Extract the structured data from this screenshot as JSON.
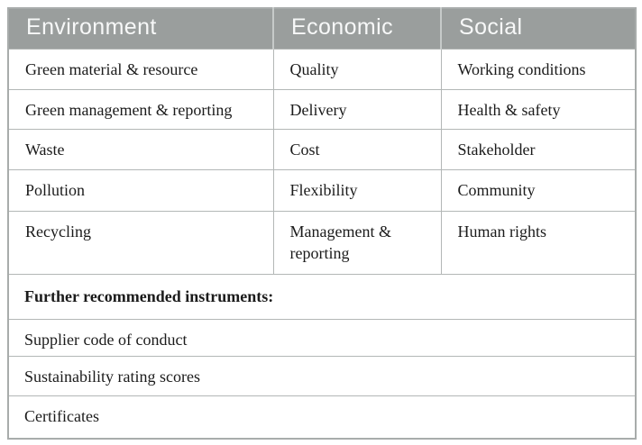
{
  "figure": {
    "columns": [
      "Environment",
      "Economic",
      "Social"
    ],
    "rows": [
      [
        "Green material & resource",
        "Quality",
        "Working conditions"
      ],
      [
        "Green management & reporting",
        "Delivery",
        "Health & safety"
      ],
      [
        "Waste",
        "Cost",
        "Stakeholder"
      ],
      [
        "Pollution",
        "Flexibility",
        "Community"
      ],
      [
        "Recycling",
        "Management & reporting",
        "Human rights"
      ]
    ],
    "footer_heading": "Further recommended instruments:",
    "footer_items": [
      "Supplier code of conduct",
      "Sustainability rating scores",
      "Certificates"
    ],
    "colors": {
      "header_bg": "#9a9e9d",
      "header_text": "#f7f8f8",
      "grid_border": "#b3b7b6",
      "outer_border": "#a8acab",
      "body_text": "#1b1b1b"
    }
  }
}
